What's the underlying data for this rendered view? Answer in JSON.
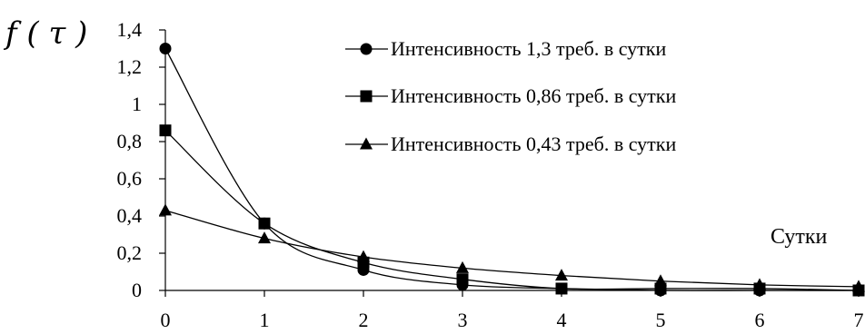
{
  "chart_data": {
    "type": "line",
    "ylabel": "f ( τ )",
    "xlabel": "Сутки",
    "ylim": [
      0,
      1.4
    ],
    "xlim": [
      0,
      7
    ],
    "x_ticks": [
      "0",
      "1",
      "2",
      "3",
      "4",
      "5",
      "6",
      "7"
    ],
    "y_ticks": [
      "0",
      "0,2",
      "0,4",
      "0,6",
      "0,8",
      "1",
      "1,2",
      "1,4"
    ],
    "grid": false,
    "legend_position": "top-right",
    "x": [
      0,
      1,
      2,
      3,
      4,
      5,
      6,
      7
    ],
    "series": [
      {
        "name": "Интенсивность  1,3 треб. в сутки",
        "marker": "circle",
        "values": [
          1.3,
          0.36,
          0.11,
          0.03,
          0.01,
          0.0,
          0.0,
          0.0
        ]
      },
      {
        "name": "Интенсивность  0,86 треб. в сутки",
        "marker": "square",
        "values": [
          0.86,
          0.36,
          0.15,
          0.06,
          0.01,
          0.01,
          0.01,
          0.0
        ]
      },
      {
        "name": "Интенсивность  0,43 треб. в сутки",
        "marker": "triangle",
        "values": [
          0.43,
          0.28,
          0.18,
          0.12,
          0.08,
          0.05,
          0.03,
          0.02
        ]
      }
    ]
  }
}
